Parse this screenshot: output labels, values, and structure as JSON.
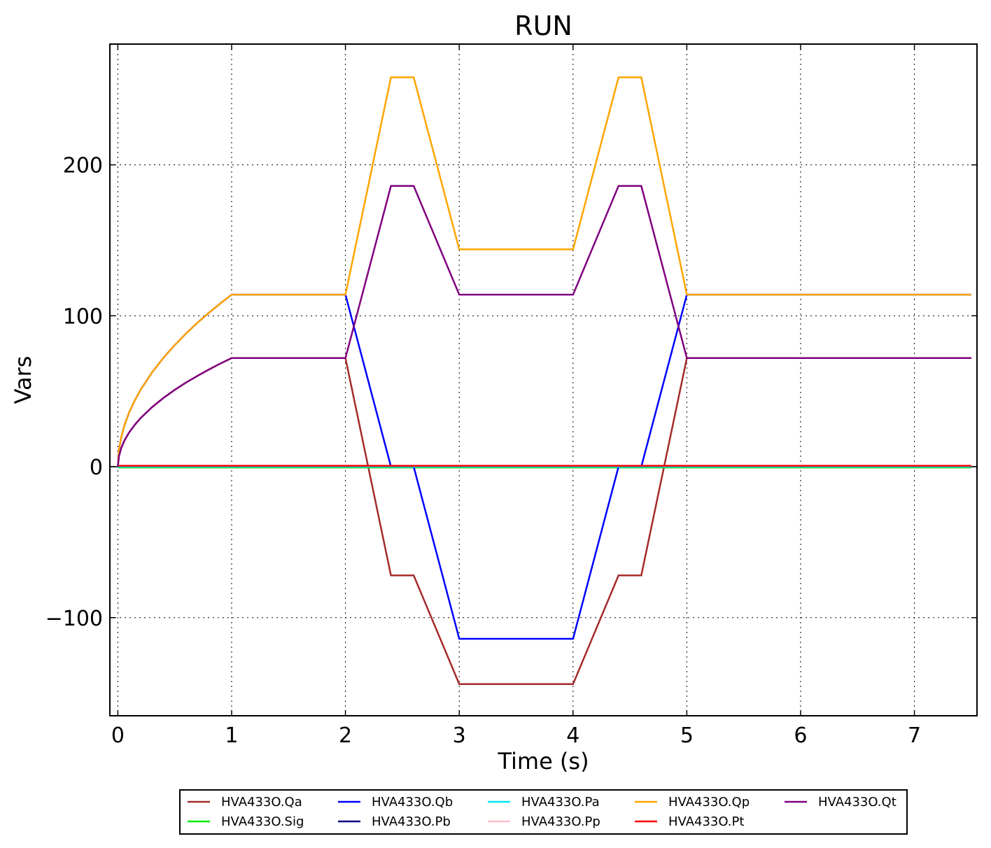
{
  "chart_data": {
    "type": "line",
    "title": "RUN",
    "xlabel": "Time (s)",
    "ylabel": "Vars",
    "xlim": [
      -0.07,
      7.55
    ],
    "ylim": [
      -165,
      280
    ],
    "xticks": [
      0,
      1,
      2,
      3,
      4,
      5,
      6,
      7
    ],
    "xtick_labels": [
      "0",
      "1",
      "2",
      "3",
      "4",
      "5",
      "6",
      "7"
    ],
    "yticks": [
      -100,
      0,
      100,
      200
    ],
    "ytick_labels": [
      "−100",
      "0",
      "100",
      "200"
    ],
    "grid": true,
    "legend_position": "below",
    "series": [
      {
        "name": "HVA433O.Qa",
        "color": "#a52a2a",
        "x": [
          0,
          0.01,
          0.03,
          0.06,
          0.1,
          0.15,
          0.2,
          0.3,
          0.4,
          0.5,
          0.6,
          0.7,
          0.8,
          0.9,
          1,
          2,
          2.4,
          2.6,
          3,
          4,
          4.4,
          4.6,
          5,
          7.5
        ],
        "y": [
          0,
          7,
          12.5,
          17.6,
          22.8,
          27.9,
          32.2,
          39.4,
          45.5,
          50.9,
          55.8,
          60.2,
          64.4,
          68.3,
          72,
          72,
          -72,
          -72,
          -144,
          -144,
          -72,
          -72,
          72,
          72
        ]
      },
      {
        "name": "HVA433O.Sig",
        "color": "#00ee00",
        "x": [
          0,
          7.5
        ],
        "y": [
          -0.5,
          -0.5
        ]
      },
      {
        "name": "HVA433O.Qb",
        "color": "#0000ff",
        "x": [
          0,
          0.01,
          0.03,
          0.06,
          0.1,
          0.15,
          0.2,
          0.3,
          0.4,
          0.5,
          0.6,
          0.7,
          0.8,
          0.9,
          1,
          2,
          2.4,
          2.6,
          3,
          4,
          4.4,
          4.6,
          5,
          7.5
        ],
        "y": [
          0,
          11.4,
          19.7,
          27.9,
          36,
          44.1,
          51,
          62.4,
          72.1,
          80.6,
          88.3,
          95.4,
          102,
          108.1,
          114,
          114,
          0,
          0,
          -114,
          -114,
          0,
          0,
          114,
          114
        ]
      },
      {
        "name": "HVA433O.Pb",
        "color": "#000080",
        "x": [
          0,
          7.5
        ],
        "y": [
          0,
          0
        ]
      },
      {
        "name": "HVA433O.Pa",
        "color": "#00e5ee",
        "x": [
          0,
          7.5
        ],
        "y": [
          0,
          0
        ]
      },
      {
        "name": "HVA433O.Pp",
        "color": "#ffc0cb",
        "x": [
          0,
          7.5
        ],
        "y": [
          0.6,
          0.6
        ]
      },
      {
        "name": "HVA433O.Qp",
        "color": "#ffa500",
        "x": [
          0,
          0.01,
          0.03,
          0.06,
          0.1,
          0.15,
          0.2,
          0.3,
          0.4,
          0.5,
          0.6,
          0.7,
          0.8,
          0.9,
          1,
          2,
          2.4,
          2.6,
          3,
          4,
          4.4,
          4.6,
          5,
          7.5
        ],
        "y": [
          0,
          11.4,
          19.7,
          27.9,
          36,
          44.1,
          51,
          62.4,
          72.1,
          80.6,
          88.3,
          95.4,
          102,
          108.1,
          114,
          114,
          258,
          258,
          144,
          144,
          258,
          258,
          114,
          114
        ]
      },
      {
        "name": "HVA433O.Pt",
        "color": "#ff0000",
        "x": [
          0,
          7.5
        ],
        "y": [
          0.6,
          0.6
        ]
      },
      {
        "name": "HVA433O.Qt",
        "color": "#800080",
        "x": [
          0,
          0.01,
          0.03,
          0.06,
          0.1,
          0.15,
          0.2,
          0.3,
          0.4,
          0.5,
          0.6,
          0.7,
          0.8,
          0.9,
          1,
          2,
          2.4,
          2.6,
          3,
          4,
          4.4,
          4.6,
          5,
          7.5
        ],
        "y": [
          0,
          7,
          12.5,
          17.6,
          22.8,
          27.9,
          32.2,
          39.4,
          45.5,
          50.9,
          55.8,
          60.2,
          64.4,
          68.3,
          72,
          72,
          186,
          186,
          114,
          114,
          186,
          186,
          72,
          72
        ]
      }
    ],
    "legend_order": [
      "HVA433O.Qa",
      "HVA433O.Qb",
      "HVA433O.Pa",
      "HVA433O.Qp",
      "HVA433O.Qt",
      "HVA433O.Sig",
      "HVA433O.Pb",
      "HVA433O.Pp",
      "HVA433O.Pt"
    ]
  }
}
